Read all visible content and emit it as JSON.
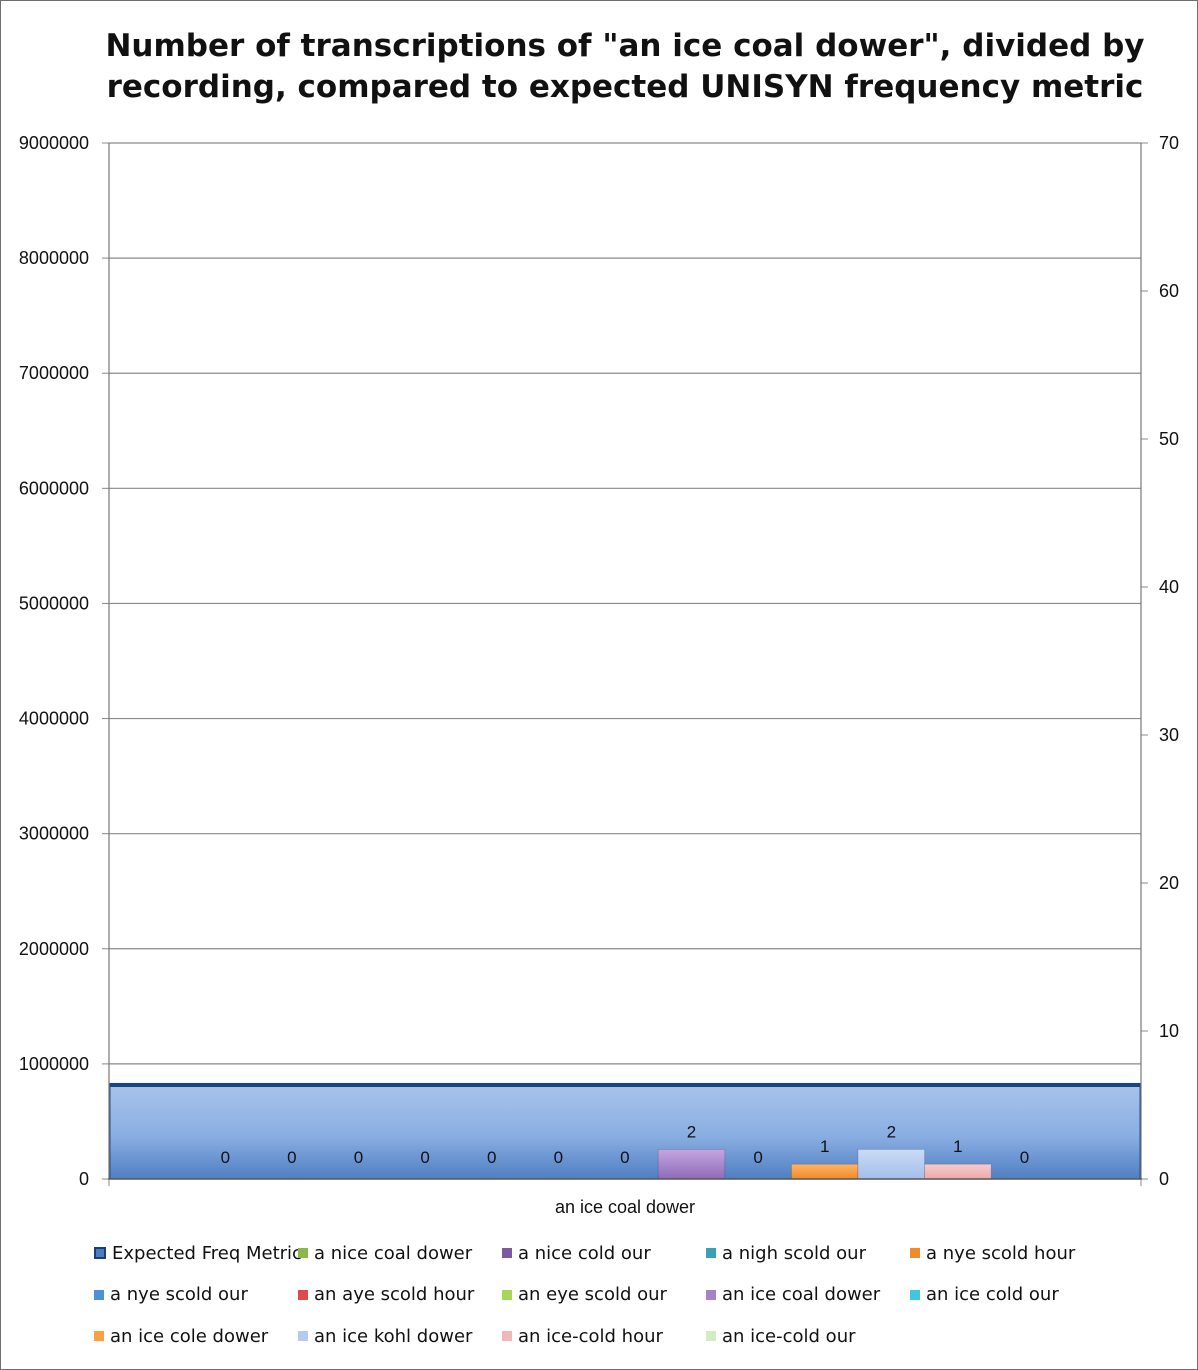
{
  "chart_data": {
    "type": "bar",
    "title": "Number of transcriptions of \"an ice coal dower\", divided by recording, compared to expected UNISYN frequency metric",
    "categories": [
      "an ice coal dower"
    ],
    "primary_axis": {
      "ylim": [
        0,
        9000000
      ],
      "ticks": [
        "0",
        "1000000",
        "2000000",
        "3000000",
        "4000000",
        "5000000",
        "6000000",
        "7000000",
        "8000000",
        "9000000"
      ]
    },
    "secondary_axis": {
      "ylim": [
        0,
        70
      ],
      "ticks": [
        "0",
        "10",
        "20",
        "30",
        "40",
        "50",
        "60",
        "70"
      ]
    },
    "grid": true,
    "legend_position": "bottom",
    "series": [
      {
        "name": "Expected Freq Metric",
        "axis": "primary",
        "values": [
          830000
        ],
        "color": "#4a7ec2"
      },
      {
        "name": "a nice coal dower",
        "axis": "secondary",
        "values": [
          0
        ],
        "label": "0",
        "color": "#8cb84a"
      },
      {
        "name": "a nice cold our",
        "axis": "secondary",
        "values": [
          0
        ],
        "label": "0",
        "color": "#7d5a9e"
      },
      {
        "name": "a nigh scold our",
        "axis": "secondary",
        "values": [
          0
        ],
        "label": "0",
        "color": "#3aa0b8"
      },
      {
        "name": "a nye scold hour",
        "axis": "secondary",
        "values": [
          0
        ],
        "label": "0",
        "color": "#f08a2c"
      },
      {
        "name": "a nye scold our",
        "axis": "secondary",
        "values": [
          0
        ],
        "label": "0",
        "color": "#4f90d6"
      },
      {
        "name": "an aye scold hour",
        "axis": "secondary",
        "values": [
          0
        ],
        "label": "0",
        "color": "#e04a4a"
      },
      {
        "name": "an eye scold our",
        "axis": "secondary",
        "values": [
          0
        ],
        "label": "0",
        "color": "#a6d854"
      },
      {
        "name": "an ice coal dower",
        "axis": "secondary",
        "values": [
          2
        ],
        "label": "2",
        "color": "#a683c9"
      },
      {
        "name": "an ice cold our",
        "axis": "secondary",
        "values": [
          0
        ],
        "label": "0",
        "color": "#42c6e0"
      },
      {
        "name": "an ice cole dower",
        "axis": "secondary",
        "values": [
          1
        ],
        "label": "1",
        "color": "#f8a043"
      },
      {
        "name": "an ice kohl dower",
        "axis": "secondary",
        "values": [
          2
        ],
        "label": "2",
        "color": "#b3cbef"
      },
      {
        "name": "an ice-cold hour",
        "axis": "secondary",
        "values": [
          1
        ],
        "label": "1",
        "color": "#f2b7b7"
      },
      {
        "name": "an ice-cold our",
        "axis": "secondary",
        "values": [
          0
        ],
        "label": "0",
        "color": "#d4ecc4"
      }
    ]
  }
}
